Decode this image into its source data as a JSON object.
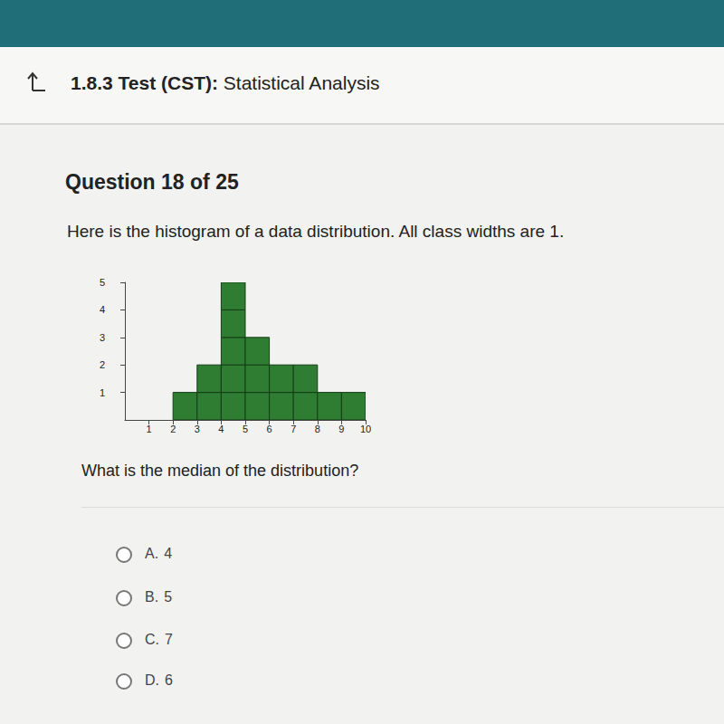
{
  "header": {
    "code": "1.8.3 Test (CST):",
    "title": "Statistical Analysis"
  },
  "counter": "Question 18 of 25",
  "prompt": "Here is the histogram of a data distribution. All class widths are 1.",
  "chart_data": {
    "type": "histogram",
    "bins": [
      2,
      3,
      4,
      5,
      6,
      7,
      8,
      9,
      10
    ],
    "values": [
      1,
      2,
      5,
      3,
      2,
      2,
      1,
      1
    ],
    "color": "#2e7d32",
    "xlim": [
      0,
      10
    ],
    "xticks": [
      1,
      2,
      3,
      4,
      5,
      6,
      7,
      8,
      9,
      10
    ],
    "ylim": [
      0,
      5
    ],
    "yticks": [
      1,
      2,
      3,
      4,
      5
    ],
    "grid": false
  },
  "ask": "What is the median of the distribution?",
  "options": [
    {
      "letter": "A.",
      "text": "4"
    },
    {
      "letter": "B.",
      "text": "5"
    },
    {
      "letter": "C.",
      "text": "7"
    },
    {
      "letter": "D.",
      "text": "6"
    }
  ]
}
